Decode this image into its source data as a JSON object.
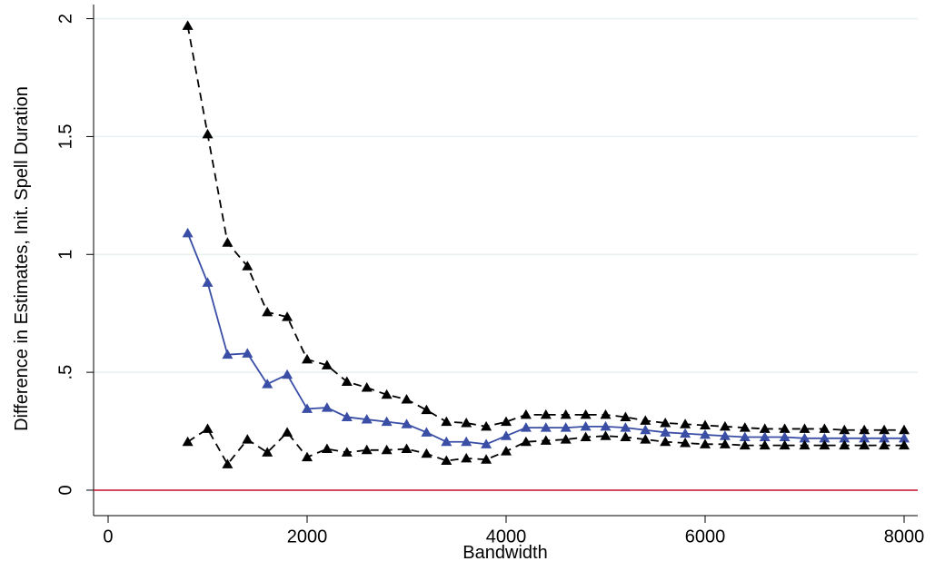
{
  "chart_data": {
    "type": "line",
    "x_label": "Bandwidth",
    "y_label": "Difference in Estimates, Init. Spell Duration",
    "x": [
      800,
      1000,
      1200,
      1400,
      1600,
      1800,
      2000,
      2200,
      2400,
      2600,
      2800,
      3000,
      3200,
      3400,
      3600,
      3800,
      4000,
      4200,
      4400,
      4600,
      4800,
      5000,
      5200,
      5400,
      5600,
      5800,
      6000,
      6200,
      6400,
      6600,
      6800,
      7000,
      7200,
      7400,
      7600,
      7800,
      8000
    ],
    "series": [
      {
        "color": "#000000",
        "dash": true,
        "values": [
          1.97,
          1.51,
          1.05,
          0.95,
          0.755,
          0.735,
          0.555,
          0.53,
          0.46,
          0.435,
          0.405,
          0.385,
          0.34,
          0.29,
          0.285,
          0.27,
          0.29,
          0.32,
          0.32,
          0.32,
          0.32,
          0.32,
          0.31,
          0.295,
          0.285,
          0.28,
          0.275,
          0.27,
          0.265,
          0.26,
          0.26,
          0.26,
          0.26,
          0.255,
          0.255,
          0.255,
          0.255
        ]
      },
      {
        "color": "#3a4ea6",
        "dash": false,
        "values": [
          1.09,
          0.88,
          0.575,
          0.58,
          0.45,
          0.49,
          0.345,
          0.35,
          0.31,
          0.3,
          0.29,
          0.28,
          0.245,
          0.205,
          0.205,
          0.195,
          0.23,
          0.265,
          0.265,
          0.265,
          0.27,
          0.27,
          0.265,
          0.255,
          0.245,
          0.24,
          0.235,
          0.23,
          0.225,
          0.225,
          0.225,
          0.22,
          0.22,
          0.22,
          0.22,
          0.22,
          0.22
        ]
      },
      {
        "color": "#000000",
        "dash": true,
        "values": [
          0.205,
          0.26,
          0.11,
          0.215,
          0.16,
          0.245,
          0.14,
          0.175,
          0.16,
          0.17,
          0.17,
          0.175,
          0.155,
          0.125,
          0.135,
          0.13,
          0.165,
          0.205,
          0.21,
          0.215,
          0.225,
          0.23,
          0.225,
          0.215,
          0.205,
          0.2,
          0.195,
          0.195,
          0.19,
          0.19,
          0.19,
          0.19,
          0.19,
          0.19,
          0.19,
          0.19,
          0.19
        ]
      }
    ],
    "reference_line": {
      "value": 0,
      "color": "#c8102e"
    },
    "xlim": [
      -146,
      8137
    ],
    "ylim": [
      -0.108,
      2.06
    ],
    "xticks": [
      0,
      2000,
      4000,
      6000,
      8000
    ],
    "yticks": [
      0,
      {
        "value": 0.5,
        "label": ".5"
      },
      1,
      1.5,
      2
    ],
    "grid": true,
    "marker": "triangle"
  }
}
